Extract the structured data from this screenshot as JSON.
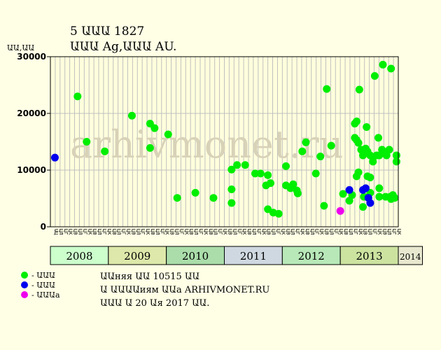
{
  "title": "5 ԱԱԱ 1827",
  "subtitle": "ԱԱԱ Ag,ԱԱԱ AU.",
  "watermark": "arhivmonet.ru",
  "colors": {
    "background": "#ffffe6",
    "plot_bg": "#ffffdd",
    "grid": "#bfbfbf",
    "series_green": "#00ee00",
    "series_blue": "#0000ee",
    "series_magenta": "#ee00ee"
  },
  "legend": [
    {
      "label": "- ԱԱԱ",
      "color": "#00ee00"
    },
    {
      "label": "- ԱԱԱ",
      "color": "#0000ee"
    },
    {
      "label": "- ԱԱԱa",
      "color": "#ee00ee"
    }
  ],
  "info_lines": [
    "ԱԱняя ԱԱ 10515 ԱԱ",
    "Ա ԱԱԱԱиям ԱԱa ARHIVMONET.RU",
    "ԱԱԱ Ա 20 Աя 2017 ԱԱ."
  ],
  "chart_data": {
    "type": "scatter",
    "ylabel": "ԱԱ,ԱԱ",
    "ylim": [
      0,
      30000
    ],
    "yticks": [
      0,
      10000,
      20000,
      30000
    ],
    "grid": true,
    "legend_position": "bottom-left",
    "quarter_labels": [
      "ԱЦ",
      "ЦЛ",
      "ЦГ",
      "ЦК",
      "ЦВ",
      "ЦЛ",
      "ЦГ",
      "ЦК",
      "ЦВ",
      "ЦЛ",
      "ЦГ",
      "ЦК",
      "ЦВ",
      "ЦЛ",
      "ЦГ",
      "ЦК",
      "ЦВ",
      "ЦЛ",
      "ЦГ",
      "ЦК",
      "ЦВ",
      "ЦЛ",
      "ЦГ",
      "ЦК",
      "ЦВ",
      "ЦЛ",
      "ЦГ",
      "ЦК",
      "ЦВ",
      "ЦЛ",
      "ЦГ",
      "ЦК",
      "ЦВ",
      "ЦЛ",
      "ЦГ",
      "ЦК",
      "ЦВ",
      "ЦЛ",
      "ЦГ",
      "ЦК",
      "ЦВ",
      "ЦЛ",
      "ЦГ",
      "ЦК",
      "ЦВ",
      "ЦЛ",
      "ЦГ",
      "ЦК",
      "ЦВ",
      "ЦЛ",
      "ЦГ",
      "ЦК",
      "ЦВ",
      "ЦЛ",
      "ЦГ",
      "ЦК",
      "ЦВ",
      "ЦЛ",
      "ЦГ",
      "ЦК",
      "ЦВ",
      "ЦЛ",
      "ЦГ",
      "ЦК",
      "ЦВ",
      "ЦЛ",
      "ЦГ",
      "ЦК",
      "ЦВ",
      "ЦЛ",
      "ЦГ",
      "ЦК"
    ],
    "years": [
      {
        "label": "2008",
        "start": 0,
        "span": 12,
        "color": "#ccffcc"
      },
      {
        "label": "2009",
        "start": 12,
        "span": 12,
        "color": "#dde8aa"
      },
      {
        "label": "2010",
        "start": 24,
        "span": 12,
        "color": "#aaddaa"
      },
      {
        "label": "2011",
        "start": 36,
        "span": 12,
        "color": "#cfd8e0"
      },
      {
        "label": "2012",
        "start": 48,
        "span": 12,
        "color": "#b8e8b8"
      },
      {
        "label": "2013",
        "start": 60,
        "span": 12,
        "color": "#cce3a0"
      },
      {
        "label": "2014",
        "start": 72,
        "span": 5,
        "color": "#e8e8d0"
      }
    ],
    "series": [
      {
        "color": "#00ee00",
        "points": [
          {
            "x": 3.0,
            "y": 23000
          },
          {
            "x": 4.0,
            "y": 15000
          },
          {
            "x": 6.0,
            "y": 13300
          },
          {
            "x": 9.0,
            "y": 19600
          },
          {
            "x": 11.0,
            "y": 13900
          },
          {
            "x": 11.0,
            "y": 18200
          },
          {
            "x": 11.5,
            "y": 17400
          },
          {
            "x": 13.0,
            "y": 16300
          },
          {
            "x": 14.0,
            "y": 5100
          },
          {
            "x": 16.0,
            "y": 6000
          },
          {
            "x": 18.0,
            "y": 5100
          },
          {
            "x": 20.0,
            "y": 6600
          },
          {
            "x": 20.0,
            "y": 4200
          },
          {
            "x": 20.0,
            "y": 10100
          },
          {
            "x": 20.6,
            "y": 10900
          },
          {
            "x": 21.5,
            "y": 10900
          },
          {
            "x": 22.6,
            "y": 9400
          },
          {
            "x": 23.2,
            "y": 9400
          },
          {
            "x": 23.8,
            "y": 7300
          },
          {
            "x": 24.0,
            "y": 9100
          },
          {
            "x": 24.3,
            "y": 7700
          },
          {
            "x": 24.0,
            "y": 3100
          },
          {
            "x": 24.6,
            "y": 2500
          },
          {
            "x": 25.2,
            "y": 2300
          },
          {
            "x": 26.0,
            "y": 10700
          },
          {
            "x": 26.0,
            "y": 7300
          },
          {
            "x": 26.5,
            "y": 6800
          },
          {
            "x": 26.8,
            "y": 7500
          },
          {
            "x": 27.2,
            "y": 6400
          },
          {
            "x": 27.3,
            "y": 5900
          },
          {
            "x": 27.8,
            "y": 13300
          },
          {
            "x": 28.2,
            "y": 14900
          },
          {
            "x": 29.3,
            "y": 9400
          },
          {
            "x": 29.8,
            "y": 12400
          },
          {
            "x": 30.2,
            "y": 3700
          },
          {
            "x": 30.5,
            "y": 24300
          },
          {
            "x": 31.0,
            "y": 14300
          },
          {
            "x": 32.3,
            "y": 5800
          },
          {
            "x": 33.0,
            "y": 4600
          },
          {
            "x": 33.3,
            "y": 5600
          },
          {
            "x": 33.6,
            "y": 18200
          },
          {
            "x": 33.8,
            "y": 18600
          },
          {
            "x": 33.6,
            "y": 15700
          },
          {
            "x": 33.8,
            "y": 15300
          },
          {
            "x": 34.0,
            "y": 14800
          },
          {
            "x": 33.8,
            "y": 8900
          },
          {
            "x": 34.0,
            "y": 9600
          },
          {
            "x": 34.1,
            "y": 24200
          },
          {
            "x": 34.3,
            "y": 13600
          },
          {
            "x": 34.5,
            "y": 12600
          },
          {
            "x": 34.8,
            "y": 13800
          },
          {
            "x": 34.5,
            "y": 3500
          },
          {
            "x": 34.6,
            "y": 5300
          },
          {
            "x": 34.9,
            "y": 17600
          },
          {
            "x": 35.0,
            "y": 13300
          },
          {
            "x": 35.3,
            "y": 12600
          },
          {
            "x": 35.0,
            "y": 8900
          },
          {
            "x": 35.3,
            "y": 8700
          },
          {
            "x": 35.3,
            "y": 6000
          },
          {
            "x": 35.6,
            "y": 12300
          },
          {
            "x": 35.6,
            "y": 11500
          },
          {
            "x": 35.8,
            "y": 26600
          },
          {
            "x": 36.0,
            "y": 12600
          },
          {
            "x": 36.2,
            "y": 15700
          },
          {
            "x": 36.3,
            "y": 12600
          },
          {
            "x": 36.3,
            "y": 6800
          },
          {
            "x": 36.3,
            "y": 5300
          },
          {
            "x": 36.6,
            "y": 13600
          },
          {
            "x": 36.7,
            "y": 28600
          },
          {
            "x": 36.9,
            "y": 13100
          },
          {
            "x": 37.1,
            "y": 12600
          },
          {
            "x": 37.4,
            "y": 13600
          },
          {
            "x": 37.0,
            "y": 5300
          },
          {
            "x": 37.5,
            "y": 5300
          },
          {
            "x": 37.6,
            "y": 27900
          },
          {
            "x": 37.8,
            "y": 5600
          },
          {
            "x": 37.6,
            "y": 4900
          },
          {
            "x": 38.0,
            "y": 5100
          },
          {
            "x": 38.2,
            "y": 12600
          },
          {
            "x": 38.2,
            "y": 11500
          }
        ]
      },
      {
        "color": "#0000ee",
        "points": [
          {
            "x": 0.5,
            "y": 12200
          },
          {
            "x": 33.0,
            "y": 6500
          },
          {
            "x": 34.5,
            "y": 6500
          },
          {
            "x": 34.8,
            "y": 6800
          },
          {
            "x": 35.1,
            "y": 5100
          },
          {
            "x": 35.3,
            "y": 4200
          }
        ]
      },
      {
        "color": "#ee00ee",
        "points": [
          {
            "x": 32.0,
            "y": 2800
          }
        ]
      }
    ]
  }
}
